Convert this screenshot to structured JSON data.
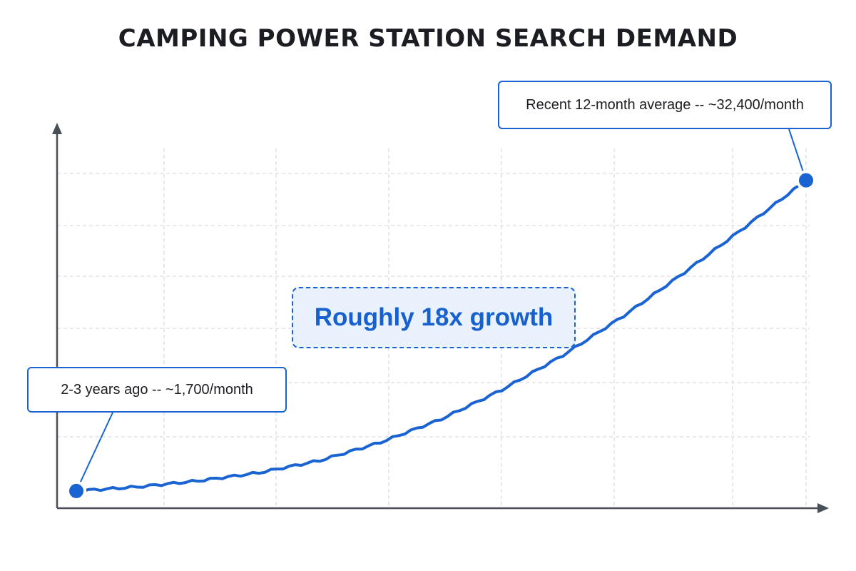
{
  "chart_data": {
    "type": "line",
    "title": "CAMPING POWER STATION SEARCH DEMAND",
    "xlabel": "",
    "ylabel": "",
    "grid": true,
    "series": [
      {
        "values": [
          1700,
          2100,
          2700,
          3500,
          4700,
          6500,
          8800,
          11700,
          15100,
          19000,
          23300,
          27800,
          32400
        ]
      }
    ],
    "annotations": {
      "start": "2-3 years ago -- ~1,700/month",
      "end": "Recent 12-month average -- ~32,400/month",
      "growth": "Roughly 18x growth"
    },
    "colors": {
      "line": "#1a63d3",
      "axis": "#4a4f57",
      "grid": "#d9dce1",
      "badge_fill": "#e8f1fc"
    }
  }
}
